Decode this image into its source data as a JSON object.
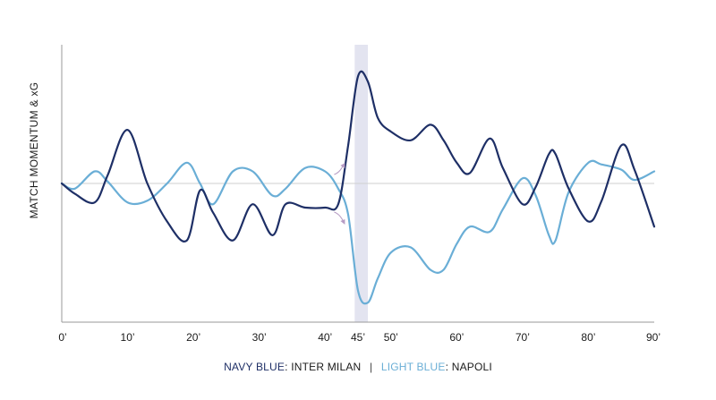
{
  "chart_data": {
    "type": "line",
    "title": "",
    "xlabel": "",
    "ylabel": "MATCH MOMENTUM & xG",
    "x_ticks": [
      "0’",
      "10’",
      "20’",
      "30’",
      "40’",
      "45’",
      "50’",
      "60’",
      "70’",
      "80’",
      "90’"
    ],
    "x_tick_values": [
      0,
      10,
      20,
      30,
      40,
      45,
      50,
      60,
      70,
      80,
      90
    ],
    "xlim": [
      0,
      90
    ],
    "ylim": [
      -1,
      1
    ],
    "baseline": 0,
    "highlight_band": [
      44.5,
      46.5
    ],
    "grid": false,
    "legend_position": "bottom-center",
    "series": [
      {
        "name": "INTER MILAN",
        "color": "#1e2f66",
        "x": [
          0,
          2,
          5,
          7,
          10,
          13,
          16,
          19,
          21,
          23,
          26,
          29,
          32,
          34,
          37,
          40,
          42,
          43.5,
          45,
          46.5,
          48,
          50,
          53,
          56,
          58,
          60,
          62,
          65,
          67,
          70,
          72,
          74,
          75,
          77,
          80,
          82,
          85,
          87,
          90
        ],
        "y": [
          0,
          -0.06,
          -0.11,
          0.05,
          0.31,
          0.0,
          -0.22,
          -0.33,
          -0.04,
          -0.17,
          -0.33,
          -0.12,
          -0.3,
          -0.12,
          -0.14,
          -0.14,
          -0.12,
          0.22,
          0.62,
          0.59,
          0.38,
          0.3,
          0.25,
          0.34,
          0.25,
          0.12,
          0.06,
          0.26,
          0.09,
          -0.12,
          -0.02,
          0.17,
          0.17,
          -0.03,
          -0.22,
          -0.1,
          0.22,
          0.08,
          -0.25
        ]
      },
      {
        "name": "NAPOLI",
        "color": "#6aaed6",
        "x": [
          0,
          2,
          5,
          7,
          10,
          13,
          16,
          19,
          21,
          23,
          26,
          29,
          32,
          34,
          37,
          40,
          42,
          43.5,
          45,
          46.5,
          48,
          50,
          53,
          56,
          58,
          60,
          62,
          65,
          67,
          70,
          72,
          74,
          75,
          77,
          80,
          82,
          85,
          87,
          90
        ],
        "y": [
          0,
          -0.03,
          0.07,
          0.01,
          -0.11,
          -0.1,
          0.0,
          0.12,
          0.0,
          -0.12,
          0.07,
          0.07,
          -0.07,
          -0.03,
          0.09,
          0.07,
          -0.03,
          -0.18,
          -0.62,
          -0.69,
          -0.55,
          -0.4,
          -0.37,
          -0.5,
          -0.5,
          -0.35,
          -0.25,
          -0.28,
          -0.15,
          0.03,
          -0.07,
          -0.3,
          -0.33,
          -0.05,
          0.12,
          0.11,
          0.08,
          0.02,
          0.07
        ]
      }
    ]
  },
  "legend": {
    "series1_label": "NAVY BLUE",
    "series1_team": ": INTER MILAN",
    "separator": "|",
    "series2_label": "LIGHT BLUE",
    "series2_team": ": NAPOLI"
  },
  "colors": {
    "navy": "#1e2f66",
    "light_blue": "#6aaed6",
    "band": "#e3e4f0",
    "axis": "#9a9a9a",
    "baseline": "#cfcfcf",
    "arrow": "#b79cc4"
  }
}
